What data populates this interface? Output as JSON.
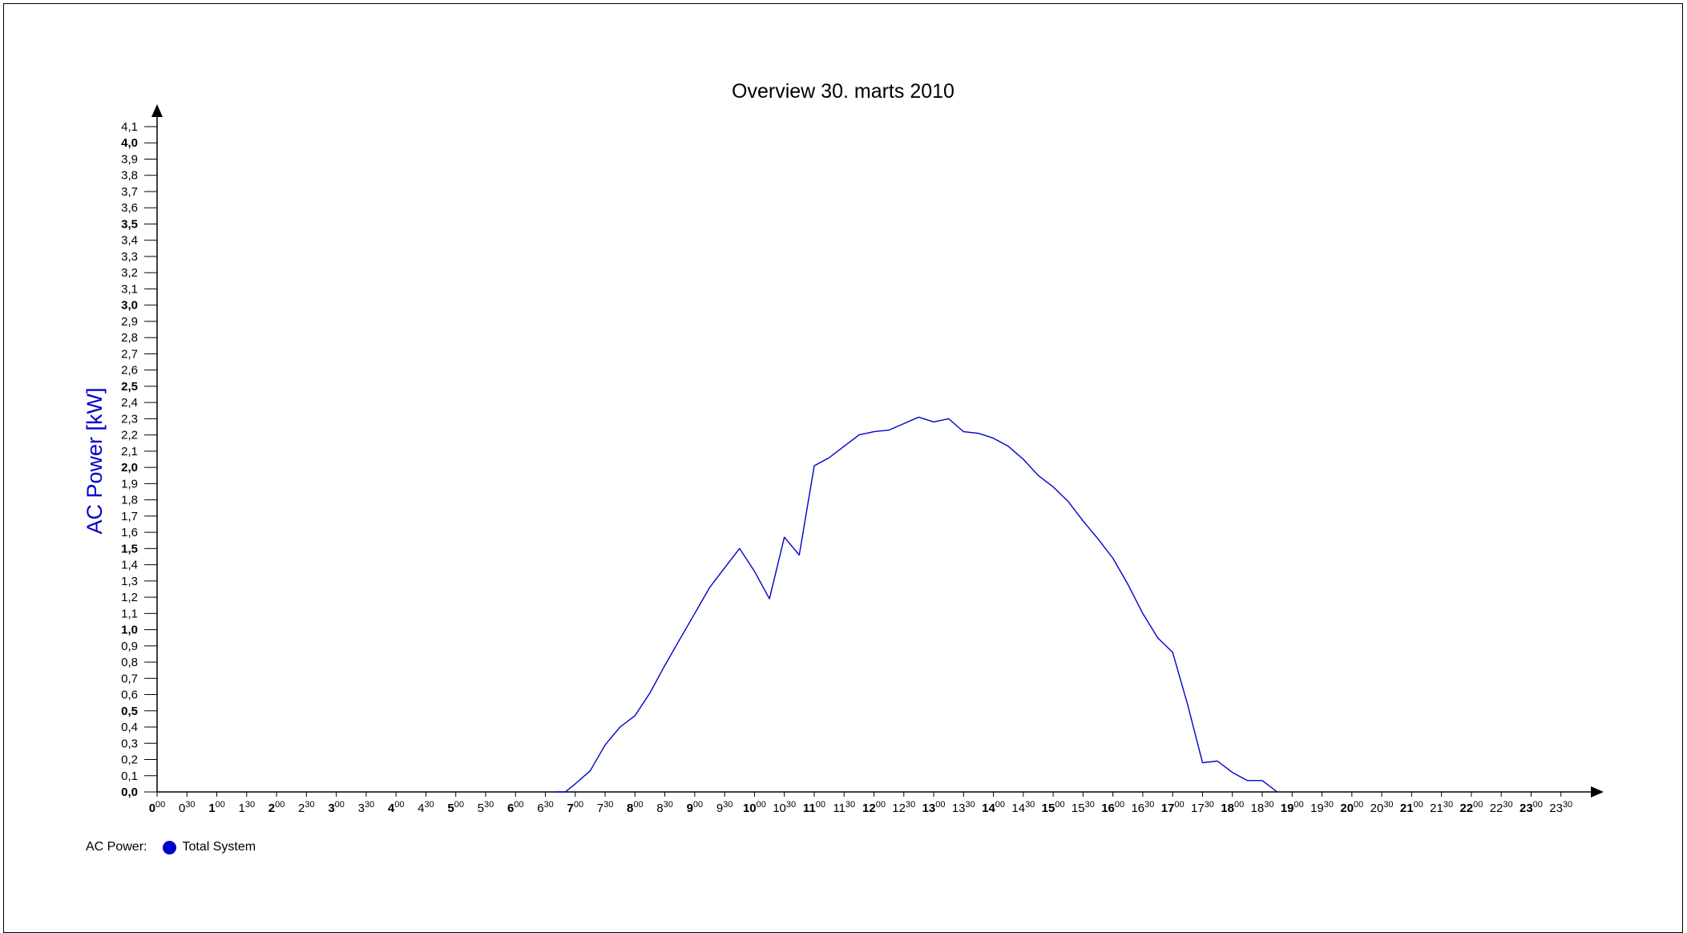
{
  "chart_data": {
    "type": "line",
    "title": "Overview 30. marts 2010",
    "ylabel": "AC Power [kW]",
    "xlabel": "",
    "ylim": [
      0,
      4.1
    ],
    "xlim": [
      0,
      24
    ],
    "y_ticks": [
      "0,0",
      "0,1",
      "0,2",
      "0,3",
      "0,4",
      "0,5",
      "0,6",
      "0,7",
      "0,8",
      "0,9",
      "1,0",
      "1,1",
      "1,2",
      "1,3",
      "1,4",
      "1,5",
      "1,6",
      "1,7",
      "1,8",
      "1,9",
      "2,0",
      "2,1",
      "2,2",
      "2,3",
      "2,4",
      "2,5",
      "2,6",
      "2,7",
      "2,8",
      "2,9",
      "3,0",
      "3,1",
      "3,2",
      "3,3",
      "3,4",
      "3,5",
      "3,6",
      "3,7",
      "3,8",
      "3,9",
      "4,0",
      "4,1"
    ],
    "y_major_ticks": [
      "0,0",
      "0,5",
      "1,0",
      "1,5",
      "2,0",
      "2,5",
      "3,0",
      "3,5",
      "4,0"
    ],
    "x_ticks": [
      {
        "hour": "0",
        "min": "00"
      },
      {
        "hour": "0",
        "min": "30"
      },
      {
        "hour": "1",
        "min": "00"
      },
      {
        "hour": "1",
        "min": "30"
      },
      {
        "hour": "2",
        "min": "00"
      },
      {
        "hour": "2",
        "min": "30"
      },
      {
        "hour": "3",
        "min": "00"
      },
      {
        "hour": "3",
        "min": "30"
      },
      {
        "hour": "4",
        "min": "00"
      },
      {
        "hour": "4",
        "min": "30"
      },
      {
        "hour": "5",
        "min": "00"
      },
      {
        "hour": "5",
        "min": "30"
      },
      {
        "hour": "6",
        "min": "00"
      },
      {
        "hour": "6",
        "min": "30"
      },
      {
        "hour": "7",
        "min": "00"
      },
      {
        "hour": "7",
        "min": "30"
      },
      {
        "hour": "8",
        "min": "00"
      },
      {
        "hour": "8",
        "min": "30"
      },
      {
        "hour": "9",
        "min": "00"
      },
      {
        "hour": "9",
        "min": "30"
      },
      {
        "hour": "10",
        "min": "00"
      },
      {
        "hour": "10",
        "min": "30"
      },
      {
        "hour": "11",
        "min": "00"
      },
      {
        "hour": "11",
        "min": "30"
      },
      {
        "hour": "12",
        "min": "00"
      },
      {
        "hour": "12",
        "min": "30"
      },
      {
        "hour": "13",
        "min": "00"
      },
      {
        "hour": "13",
        "min": "30"
      },
      {
        "hour": "14",
        "min": "00"
      },
      {
        "hour": "14",
        "min": "30"
      },
      {
        "hour": "15",
        "min": "00"
      },
      {
        "hour": "15",
        "min": "30"
      },
      {
        "hour": "16",
        "min": "00"
      },
      {
        "hour": "16",
        "min": "30"
      },
      {
        "hour": "17",
        "min": "00"
      },
      {
        "hour": "17",
        "min": "30"
      },
      {
        "hour": "18",
        "min": "00"
      },
      {
        "hour": "18",
        "min": "30"
      },
      {
        "hour": "19",
        "min": "00"
      },
      {
        "hour": "19",
        "min": "30"
      },
      {
        "hour": "20",
        "min": "00"
      },
      {
        "hour": "20",
        "min": "30"
      },
      {
        "hour": "21",
        "min": "00"
      },
      {
        "hour": "21",
        "min": "30"
      },
      {
        "hour": "22",
        "min": "00"
      },
      {
        "hour": "22",
        "min": "30"
      },
      {
        "hour": "23",
        "min": "00"
      },
      {
        "hour": "23",
        "min": "30"
      }
    ],
    "grid": false,
    "legend_position": "bottom-left",
    "series": [
      {
        "name": "Total System",
        "color": "#0000cc",
        "points": [
          [
            "6:40",
            0.0
          ],
          [
            "6:50",
            0.0
          ],
          [
            "7:00",
            0.05
          ],
          [
            "7:15",
            0.13
          ],
          [
            "7:30",
            0.29
          ],
          [
            "7:45",
            0.4
          ],
          [
            "8:00",
            0.47
          ],
          [
            "8:15",
            0.61
          ],
          [
            "8:30",
            0.78
          ],
          [
            "8:45",
            0.94
          ],
          [
            "9:00",
            1.1
          ],
          [
            "9:15",
            1.26
          ],
          [
            "9:30",
            1.38
          ],
          [
            "9:45",
            1.5
          ],
          [
            "10:00",
            1.36
          ],
          [
            "10:15",
            1.19
          ],
          [
            "10:30",
            1.57
          ],
          [
            "10:45",
            1.46
          ],
          [
            "11:00",
            2.01
          ],
          [
            "11:15",
            2.06
          ],
          [
            "11:30",
            2.13
          ],
          [
            "11:45",
            2.2
          ],
          [
            "12:00",
            2.22
          ],
          [
            "12:15",
            2.23
          ],
          [
            "12:30",
            2.27
          ],
          [
            "12:45",
            2.31
          ],
          [
            "13:00",
            2.28
          ],
          [
            "13:15",
            2.3
          ],
          [
            "13:30",
            2.22
          ],
          [
            "13:45",
            2.21
          ],
          [
            "14:00",
            2.18
          ],
          [
            "14:15",
            2.13
          ],
          [
            "14:30",
            2.05
          ],
          [
            "14:45",
            1.95
          ],
          [
            "15:00",
            1.88
          ],
          [
            "15:15",
            1.79
          ],
          [
            "15:30",
            1.67
          ],
          [
            "15:45",
            1.56
          ],
          [
            "16:00",
            1.44
          ],
          [
            "16:15",
            1.28
          ],
          [
            "16:30",
            1.1
          ],
          [
            "16:45",
            0.95
          ],
          [
            "17:00",
            0.86
          ],
          [
            "17:15",
            0.54
          ],
          [
            "17:30",
            0.18
          ],
          [
            "17:45",
            0.19
          ],
          [
            "18:00",
            0.12
          ],
          [
            "18:15",
            0.07
          ],
          [
            "18:30",
            0.07
          ],
          [
            "18:45",
            0.0
          ]
        ]
      }
    ]
  },
  "legend": {
    "label": "AC Power:",
    "entries": [
      {
        "name": "Total System",
        "color": "#0000cc"
      }
    ]
  }
}
